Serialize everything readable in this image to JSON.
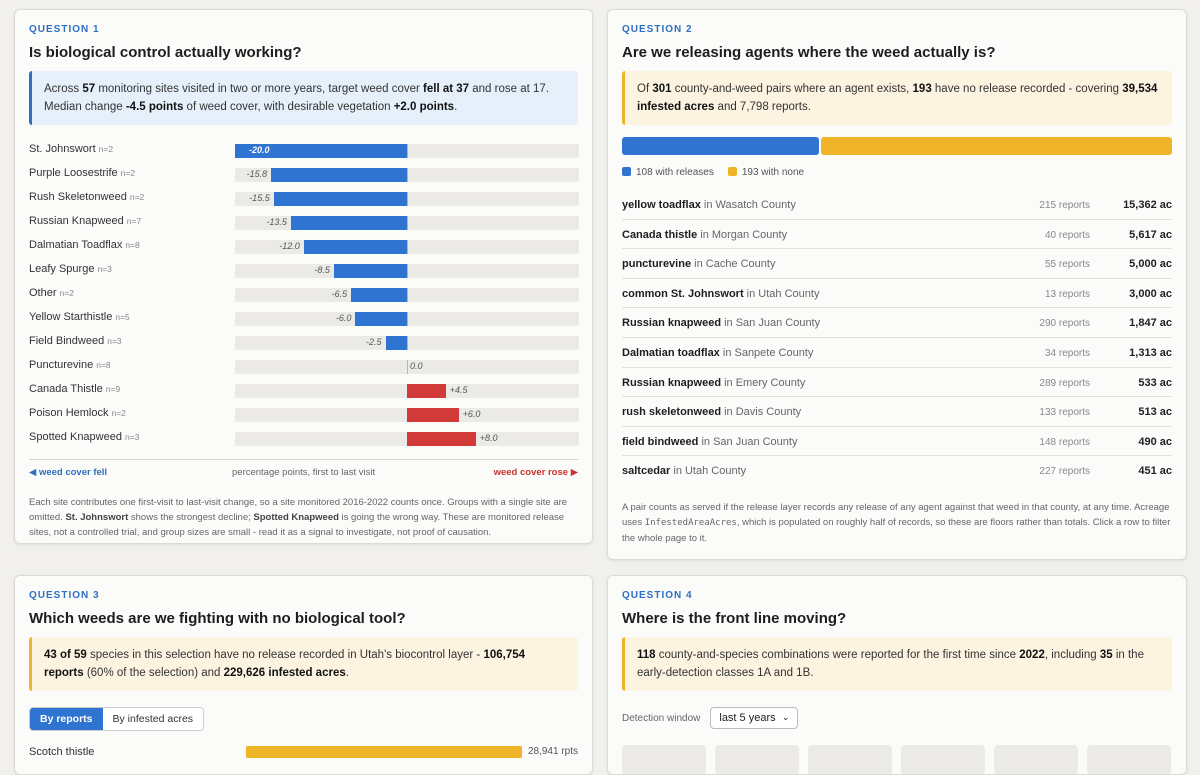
{
  "q1": {
    "label": "QUESTION 1",
    "title": "Is biological control actually working?",
    "callout": {
      "p1": "Across ",
      "sites": "57",
      "p2": " monitoring sites visited in two or more years, target weed cover ",
      "fell": "fell at 37",
      "p3": " and rose at 17.",
      "p4": "Median change ",
      "median": "-4.5 points",
      "p5": " of weed cover, with desirable vegetation ",
      "desirable": "+2.0 points",
      "p6": "."
    },
    "rows": [
      {
        "name": "St. Johnswort",
        "n": "n=2",
        "value": -20.0,
        "label": "-20.0"
      },
      {
        "name": "Purple Loosestrife",
        "n": "n=2",
        "value": -15.8,
        "label": "-15.8"
      },
      {
        "name": "Rush Skeletonweed",
        "n": "n=2",
        "value": -15.5,
        "label": "-15.5"
      },
      {
        "name": "Russian Knapweed",
        "n": "n=7",
        "value": -13.5,
        "label": "-13.5"
      },
      {
        "name": "Dalmatian Toadflax",
        "n": "n=8",
        "value": -12.0,
        "label": "-12.0"
      },
      {
        "name": "Leafy Spurge",
        "n": "n=3",
        "value": -8.5,
        "label": "-8.5"
      },
      {
        "name": "Other",
        "n": "n=2",
        "value": -6.5,
        "label": "-6.5"
      },
      {
        "name": "Yellow Starthistle",
        "n": "n=5",
        "value": -6.0,
        "label": "-6.0"
      },
      {
        "name": "Field Bindweed",
        "n": "n=3",
        "value": -2.5,
        "label": "-2.5"
      },
      {
        "name": "Puncturevine",
        "n": "n=8",
        "value": 0.0,
        "label": "0.0"
      },
      {
        "name": "Canada Thistle",
        "n": "n=9",
        "value": 4.5,
        "label": "+4.5"
      },
      {
        "name": "Poison Hemlock",
        "n": "n=2",
        "value": 6.0,
        "label": "+6.0"
      },
      {
        "name": "Spotted Knapweed",
        "n": "n=3",
        "value": 8.0,
        "label": "+8.0"
      }
    ],
    "axis": {
      "left": "◀ weed cover fell",
      "middle": "percentage points, first to last visit",
      "right": "weed cover rose ▶"
    },
    "note": {
      "p1": "Each site contributes one first-visit to last-visit change, so a site monitored 2016-2022 counts once. Groups with a single site are omitted. ",
      "b1": "St. Johnswort",
      "p2": " shows the strongest decline; ",
      "b2": "Spotted Knapweed",
      "p3": " is going the wrong way. These are monitored release sites, not a controlled trial, and group sizes are small - read it as a signal to investigate, not proof of causation."
    }
  },
  "q2": {
    "label": "QUESTION 2",
    "title": "Are we releasing agents where the weed actually is?",
    "callout": {
      "p1": "Of ",
      "pairs": "301",
      "p2": " county-and-weed pairs where an agent exists, ",
      "none": "193",
      "p3": " have no release recorded - covering ",
      "acres": "39,534 infested acres",
      "p4": " and 7,798 reports."
    },
    "split": {
      "with": 108,
      "without": 193,
      "with_color": "#2f74d0",
      "without_color": "#f0b429"
    },
    "legend": {
      "with": "108 with releases",
      "without": "193 with none"
    },
    "pairs": [
      {
        "weed": "yellow toadflax",
        "in": " in Wasatch County",
        "reports": "215 reports",
        "acres": "15,362 ac"
      },
      {
        "weed": "Canada thistle",
        "in": " in Morgan County",
        "reports": "40 reports",
        "acres": "5,617 ac"
      },
      {
        "weed": "puncturevine",
        "in": " in Cache County",
        "reports": "55 reports",
        "acres": "5,000 ac"
      },
      {
        "weed": "common St. Johnswort",
        "in": " in Utah County",
        "reports": "13 reports",
        "acres": "3,000 ac"
      },
      {
        "weed": "Russian knapweed",
        "in": " in San Juan County",
        "reports": "290 reports",
        "acres": "1,847 ac"
      },
      {
        "weed": "Dalmatian toadflax",
        "in": " in Sanpete County",
        "reports": "34 reports",
        "acres": "1,313 ac"
      },
      {
        "weed": "Russian knapweed",
        "in": " in Emery County",
        "reports": "289 reports",
        "acres": "533 ac"
      },
      {
        "weed": "rush skeletonweed",
        "in": " in Davis County",
        "reports": "133 reports",
        "acres": "513 ac"
      },
      {
        "weed": "field bindweed",
        "in": " in San Juan County",
        "reports": "148 reports",
        "acres": "490 ac"
      },
      {
        "weed": "saltcedar",
        "in": " in Utah County",
        "reports": "227 reports",
        "acres": "451 ac"
      }
    ],
    "note": {
      "p1": "A pair counts as served if the release layer records any release of any agent against that weed in that county, at any time. Acreage uses ",
      "code": "InfestedAreaAcres",
      "p2": ", which is populated on roughly half of records, so these are floors rather than totals. Click a row to filter the whole page to it."
    }
  },
  "q3": {
    "label": "QUESTION 3",
    "title": "Which weeds are we fighting with no biological tool?",
    "callout": {
      "b1": "43 of 59",
      "p1": " species in this selection have no release recorded in Utah's biocontrol layer - ",
      "b2": "106,754 reports",
      "p2": " (60% of the selection) and ",
      "b3": "229,626 infested acres",
      "p3": "."
    },
    "tabs": {
      "reports": "By reports",
      "acres": "By infested acres"
    },
    "rows": [
      {
        "name": "Scotch thistle",
        "value": 28941,
        "label": "28,941 rpts"
      }
    ]
  },
  "q4": {
    "label": "QUESTION 4",
    "title": "Where is the front line moving?",
    "callout": {
      "b1": "118",
      "p1": " county-and-species combinations were reported for the first time since ",
      "b2": "2022",
      "p2": ", including ",
      "b3": "35",
      "p3": " in the early-detection classes 1A and 1B."
    },
    "window_label": "Detection window",
    "window_value": "last 5 years"
  }
}
